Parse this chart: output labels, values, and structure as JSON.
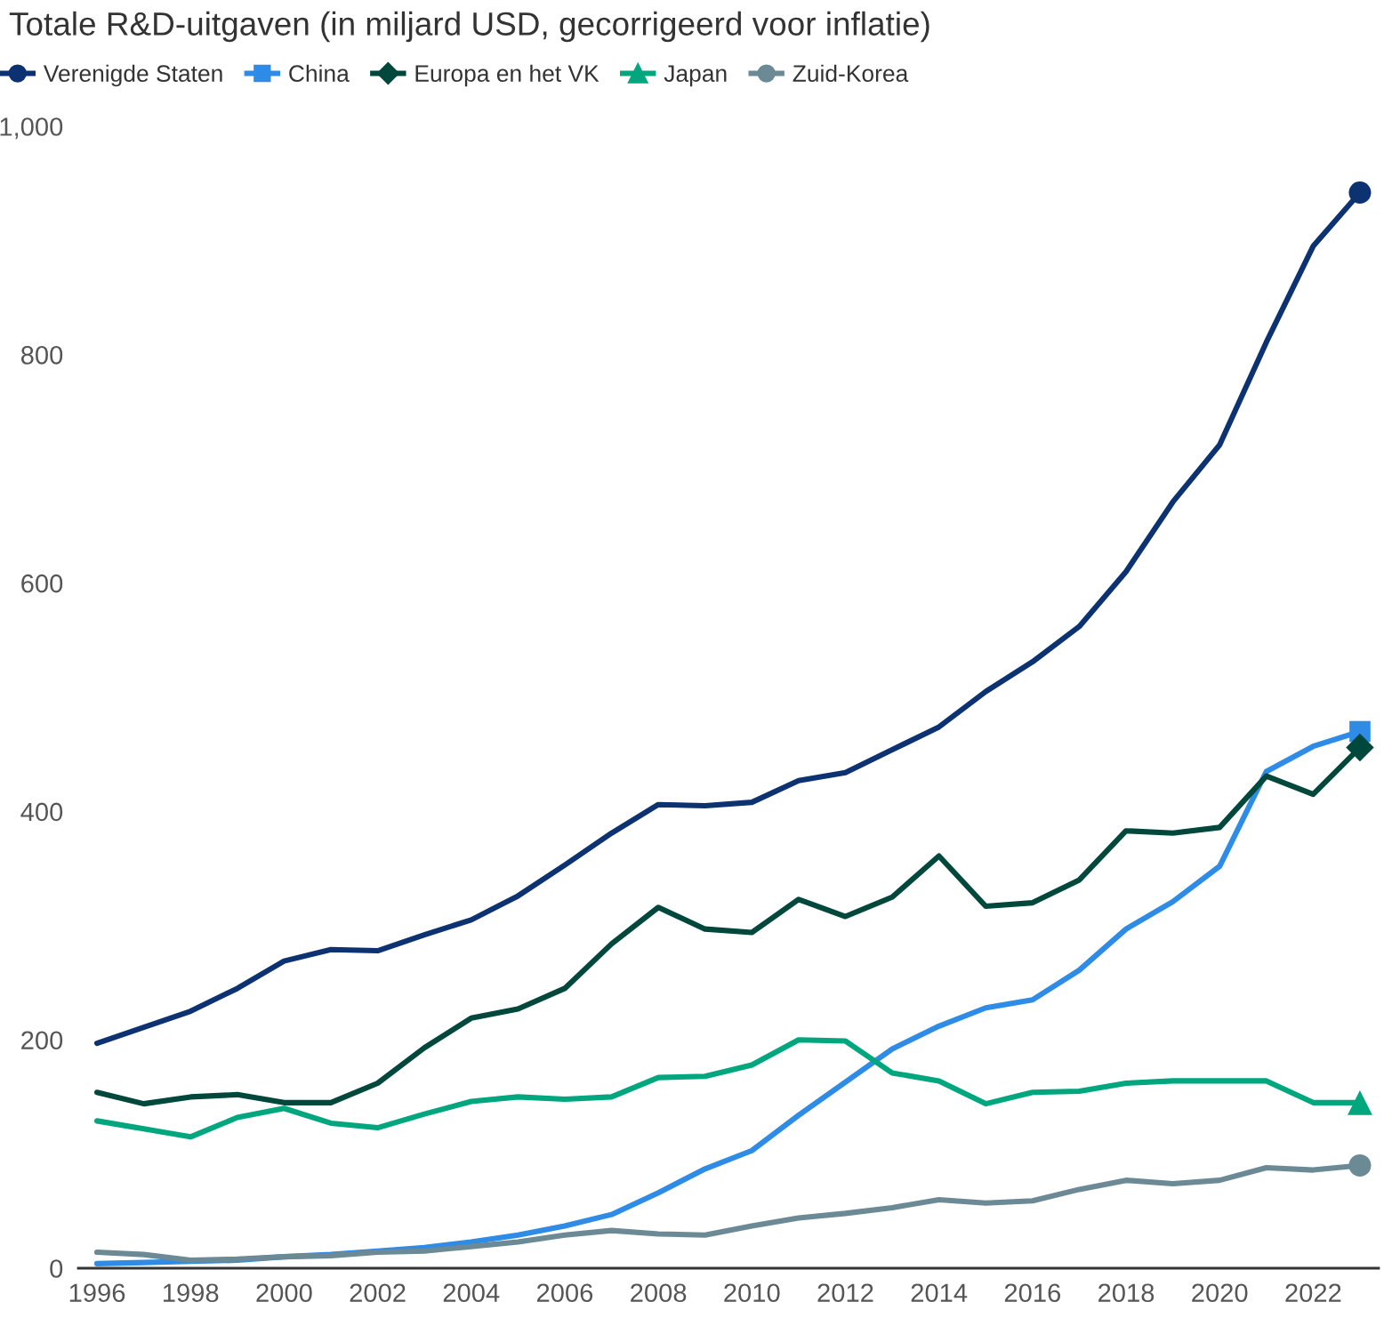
{
  "chart_data": {
    "type": "line",
    "title": "Totale R&D-uitgaven (in miljard USD, gecorrigeerd voor inflatie)",
    "x": [
      1996,
      1997,
      1998,
      1999,
      2000,
      2001,
      2002,
      2003,
      2004,
      2005,
      2006,
      2007,
      2008,
      2009,
      2010,
      2011,
      2012,
      2013,
      2014,
      2015,
      2016,
      2017,
      2018,
      2019,
      2020,
      2021,
      2022,
      2023
    ],
    "series": [
      {
        "name": "Verenigde Staten",
        "color": "#0d3272",
        "values": [
          197,
          211,
          225,
          245,
          269,
          279,
          278,
          292,
          305,
          326,
          353,
          381,
          406,
          405,
          408,
          427,
          434,
          454,
          474,
          505,
          531,
          562,
          610,
          671,
          721,
          811,
          895,
          942
        ]
      },
      {
        "name": "China",
        "color": "#2e8be6",
        "values": [
          4,
          5,
          6,
          7,
          10,
          12,
          15,
          18,
          23,
          29,
          37,
          47,
          66,
          87,
          103,
          134,
          163,
          192,
          212,
          228,
          235,
          261,
          297,
          321,
          352,
          435,
          457,
          470
        ]
      },
      {
        "name": "Europa en het VK",
        "color": "#00473c",
        "values": [
          154,
          144,
          150,
          152,
          145,
          145,
          162,
          193,
          219,
          227,
          245,
          284,
          316,
          297,
          294,
          323,
          308,
          325,
          361,
          317,
          320,
          340,
          383,
          381,
          386,
          431,
          415,
          456
        ]
      },
      {
        "name": "Japan",
        "color": "#00a67e",
        "values": [
          129,
          122,
          115,
          132,
          140,
          127,
          123,
          135,
          146,
          150,
          148,
          150,
          167,
          168,
          178,
          200,
          199,
          171,
          164,
          144,
          154,
          155,
          162,
          164,
          164,
          164,
          145,
          145
        ]
      },
      {
        "name": "Zuid-Korea",
        "color": "#6b8a96",
        "values": [
          14,
          12,
          7,
          8,
          10,
          11,
          14,
          15,
          19,
          23,
          29,
          33,
          30,
          29,
          37,
          44,
          48,
          53,
          60,
          57,
          59,
          69,
          77,
          74,
          77,
          88,
          86,
          90
        ]
      },
      {
        "type": "scatter",
        "color": "#0d3272",
        "marker": "circle",
        "values": [
          null,
          null,
          null,
          null,
          null,
          null,
          null,
          null,
          null,
          null,
          null,
          null,
          null,
          null,
          null,
          null,
          null,
          null,
          null,
          null,
          null,
          null,
          null,
          null,
          null,
          null,
          null,
          942
        ]
      },
      {
        "type": "scatter",
        "color": "#2e8be6",
        "marker": "square",
        "values": [
          null,
          null,
          null,
          null,
          null,
          null,
          null,
          null,
          null,
          null,
          null,
          null,
          null,
          null,
          null,
          null,
          null,
          null,
          null,
          null,
          null,
          null,
          null,
          null,
          null,
          null,
          null,
          470
        ]
      },
      {
        "type": "scatter",
        "color": "#00473c",
        "marker": "diamond",
        "values": [
          null,
          null,
          null,
          null,
          null,
          null,
          null,
          null,
          null,
          null,
          null,
          null,
          null,
          null,
          null,
          null,
          null,
          null,
          null,
          null,
          null,
          null,
          null,
          null,
          null,
          null,
          null,
          456
        ]
      },
      {
        "type": "scatter",
        "color": "#00a67e",
        "marker": "triangle",
        "values": [
          null,
          null,
          null,
          null,
          null,
          null,
          null,
          null,
          null,
          null,
          null,
          null,
          null,
          null,
          null,
          null,
          null,
          null,
          null,
          null,
          null,
          null,
          null,
          null,
          null,
          null,
          null,
          145
        ]
      },
      {
        "type": "scatter",
        "color": "#6b8a96",
        "marker": "circle",
        "values": [
          null,
          null,
          null,
          null,
          null,
          null,
          null,
          null,
          null,
          null,
          null,
          null,
          null,
          null,
          null,
          null,
          null,
          null,
          null,
          null,
          null,
          null,
          null,
          null,
          null,
          null,
          null,
          90
        ]
      }
    ],
    "xlim": [
      1995.6,
      2023.4
    ],
    "xticks": [
      1996,
      1998,
      2000,
      2002,
      2004,
      2006,
      2008,
      2010,
      2012,
      2014,
      2016,
      2018,
      2020,
      2022
    ],
    "ylim": [
      0,
      1000
    ],
    "yticks": [
      0,
      200,
      400,
      600,
      800,
      {
        "value": 1000,
        "label": "1,000"
      }
    ],
    "legend": "top left",
    "line_style": "solid"
  }
}
